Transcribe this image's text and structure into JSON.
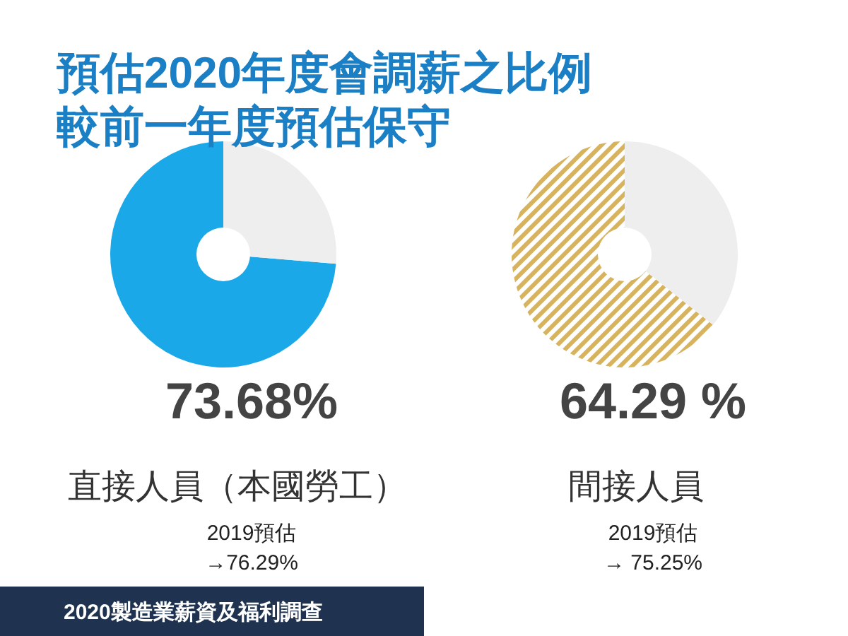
{
  "chart_data": [
    {
      "type": "donut",
      "title": "預估2020年度會調薪之比例",
      "subtitle": "較前一年度預估保守",
      "categories": [
        null,
        null
      ],
      "values": [
        73.68,
        26.32
      ],
      "colors": [
        "#1ba8e8",
        "#eeeeee"
      ],
      "value_labels": [
        "73.68%",
        null
      ],
      "xlabel": "直接人員（本國勞工）",
      "annotations": [
        "2019預估",
        "→76.29%",
        "2020製造業薪資及福利調查"
      ]
    },
    {
      "type": "donut",
      "categories": [
        null,
        null
      ],
      "values": [
        64.29,
        35.71
      ],
      "colors": [
        "#d6b35c",
        "#eeeeee"
      ],
      "value_labels": [
        "64.29 %",
        null
      ],
      "xlabel": "間接人員",
      "annotations": [
        "2019預估",
        "→ 75.25%"
      ]
    }
  ]
}
